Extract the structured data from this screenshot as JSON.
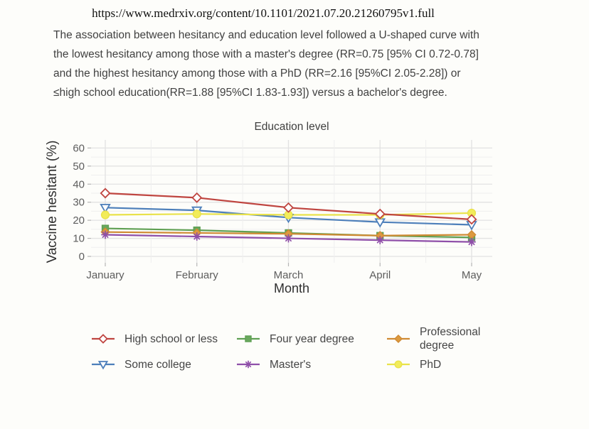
{
  "page": {
    "url": "https://www.medrxiv.org/content/10.1101/2021.07.20.21260795v1.full",
    "paragraph_lines": [
      "The association between hesitancy and education level followed a U-shaped curve with",
      "the lowest hesitancy among those with a master's degree (RR=0.75 [95% CI 0.72-0.78]",
      "and the highest hesitancy among those with a PhD (RR=2.16 [95%CI 2.05-2.28]) or",
      "≤high school education(RR=1.88 [95%CI 1.83-1.93]) versus a bachelor's degree."
    ]
  },
  "chart_data": {
    "type": "line",
    "title": "Education level",
    "xlabel": "Month",
    "ylabel": "Vaccine hesitant (%)",
    "ylim": [
      0,
      60
    ],
    "yticks": [
      0,
      10,
      20,
      30,
      40,
      50,
      60
    ],
    "grid": "on",
    "legend_position": "bottom",
    "categories": [
      "January",
      "February",
      "March",
      "April",
      "May"
    ],
    "series": [
      {
        "name": "Some college",
        "color": "#4d7fba",
        "marker": "triangle-down-open",
        "marker_fill": "#ffffff",
        "values": [
          27,
          25.5,
          21.5,
          19,
          17.5
        ]
      },
      {
        "name": "Four year degree",
        "color": "#5fa053",
        "marker": "square-filled",
        "marker_fill": "#6aa85e",
        "values": [
          15.5,
          14.5,
          13,
          11.5,
          10.5
        ]
      },
      {
        "name": "Professional degree",
        "color": "#cf8a33",
        "marker": "diamond-filled",
        "marker_fill": "#dd9a3f",
        "values": [
          13.5,
          13,
          12.5,
          11.5,
          12
        ]
      },
      {
        "name": "Master's",
        "color": "#8f4fa9",
        "marker": "asterisk",
        "marker_fill": "#8f4fa9",
        "values": [
          12,
          11,
          10,
          9,
          8
        ]
      },
      {
        "name": "PhD",
        "color": "#e9e24a",
        "marker": "circle-filled",
        "marker_fill": "#f2ec5a",
        "values": [
          23,
          23.5,
          23,
          23,
          24
        ]
      },
      {
        "name": "High school or less",
        "color": "#bf4540",
        "marker": "diamond-open",
        "marker_fill": "#ffffff",
        "values": [
          35,
          32.5,
          27,
          23.5,
          20.5
        ]
      }
    ],
    "legend_columns": [
      [
        "High school or less",
        "Some college"
      ],
      [
        "Four year degree",
        "Master's"
      ],
      [
        "Professional degree",
        "PhD"
      ]
    ]
  }
}
